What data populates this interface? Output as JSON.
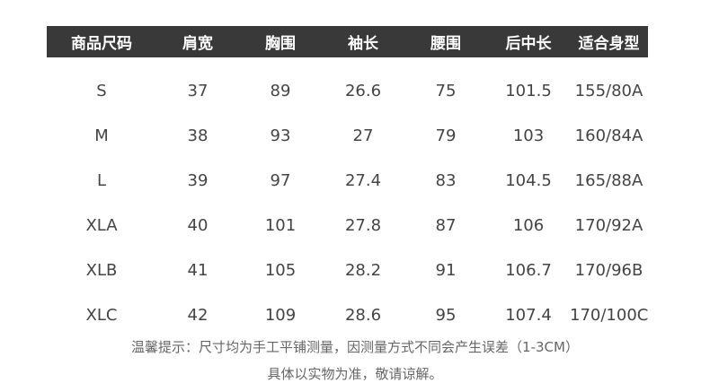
{
  "headers": [
    "商品尺码",
    "肩宽",
    "胸围",
    "袖长",
    "腰围",
    "后中长",
    "适合身型"
  ],
  "rows": [
    [
      "S",
      "37",
      "89",
      "26.6",
      "75",
      "101.5",
      "155/80A"
    ],
    [
      "M",
      "38",
      "93",
      "27",
      "79",
      "103",
      "160/84A"
    ],
    [
      "L",
      "39",
      "97",
      "27.4",
      "83",
      "104.5",
      "165/88A"
    ],
    [
      "XLA",
      "40",
      "101",
      "27.8",
      "87",
      "106",
      "170/92A"
    ],
    [
      "XLB",
      "41",
      "105",
      "28.2",
      "91",
      "106.7",
      "170/96B"
    ],
    [
      "XLC",
      "42",
      "109",
      "28.6",
      "95",
      "107.4",
      "170/100C"
    ]
  ],
  "notes": [
    "温馨提示：尺寸均为手工平铺测量，因测量方式不同会产生误差（1-3CM）",
    "具体以实物为准，敬请谅解。"
  ],
  "colors": {
    "header_bg": "#3a3939",
    "header_text": "#ffffff",
    "cell_text": "#444444"
  }
}
